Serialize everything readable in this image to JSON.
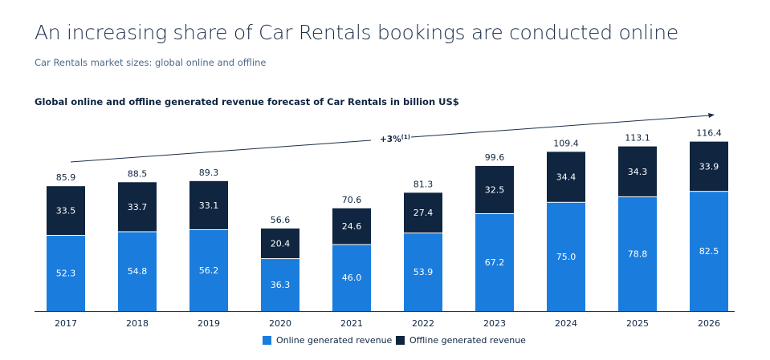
{
  "title": "An increasing share of Car Rentals bookings are conducted online",
  "subtitle": "Car Rentals market sizes: global online and offline",
  "chart_data": {
    "type": "bar",
    "stacked": true,
    "title": "Global online and offline generated revenue forecast of Car Rentals in billion US$",
    "categories": [
      "2017",
      "2018",
      "2019",
      "2020",
      "2021",
      "2022",
      "2023",
      "2024",
      "2025",
      "2026"
    ],
    "series": [
      {
        "name": "Online generated revenue",
        "color": "#1a7ddd",
        "values": [
          52.3,
          54.8,
          56.2,
          36.3,
          46.0,
          53.9,
          67.2,
          75.0,
          78.8,
          82.5
        ]
      },
      {
        "name": "Offline generated revenue",
        "color": "#0f2540",
        "values": [
          33.5,
          33.7,
          33.1,
          20.4,
          24.6,
          27.4,
          32.5,
          34.4,
          34.3,
          33.9
        ]
      }
    ],
    "totals": [
      "85.9",
      "88.5",
      "89.3",
      "56.6",
      "70.6",
      "81.3",
      "99.6",
      "109.4",
      "113.1",
      "116.4"
    ],
    "annotation": {
      "label": "+3%",
      "footnote": "(1)"
    },
    "legend_position": "bottom",
    "grid": false
  }
}
